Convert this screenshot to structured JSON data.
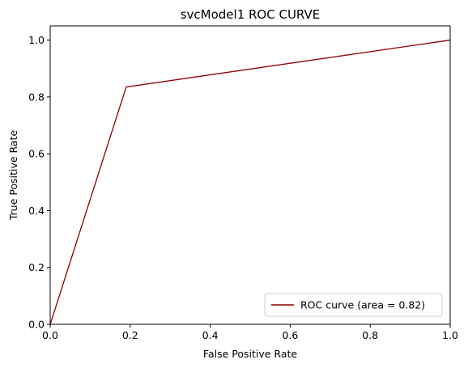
{
  "chart_data": {
    "type": "line",
    "title": "svcModel1 ROC CURVE",
    "xlabel": "False Positive Rate",
    "ylabel": "True Positive Rate",
    "xlim": [
      0.0,
      1.0
    ],
    "ylim": [
      0.0,
      1.05
    ],
    "x_ticks": [
      "0.0",
      "0.2",
      "0.4",
      "0.6",
      "0.8",
      "1.0"
    ],
    "y_ticks": [
      "0.0",
      "0.2",
      "0.4",
      "0.6",
      "0.8",
      "1.0"
    ],
    "grid": false,
    "legend_position": "lower-right",
    "series": [
      {
        "name": "ROC curve (area = 0.82)",
        "color": "#8b0000",
        "x": [
          0.0,
          0.19,
          1.0
        ],
        "y": [
          0.0,
          0.835,
          1.0
        ]
      }
    ]
  }
}
